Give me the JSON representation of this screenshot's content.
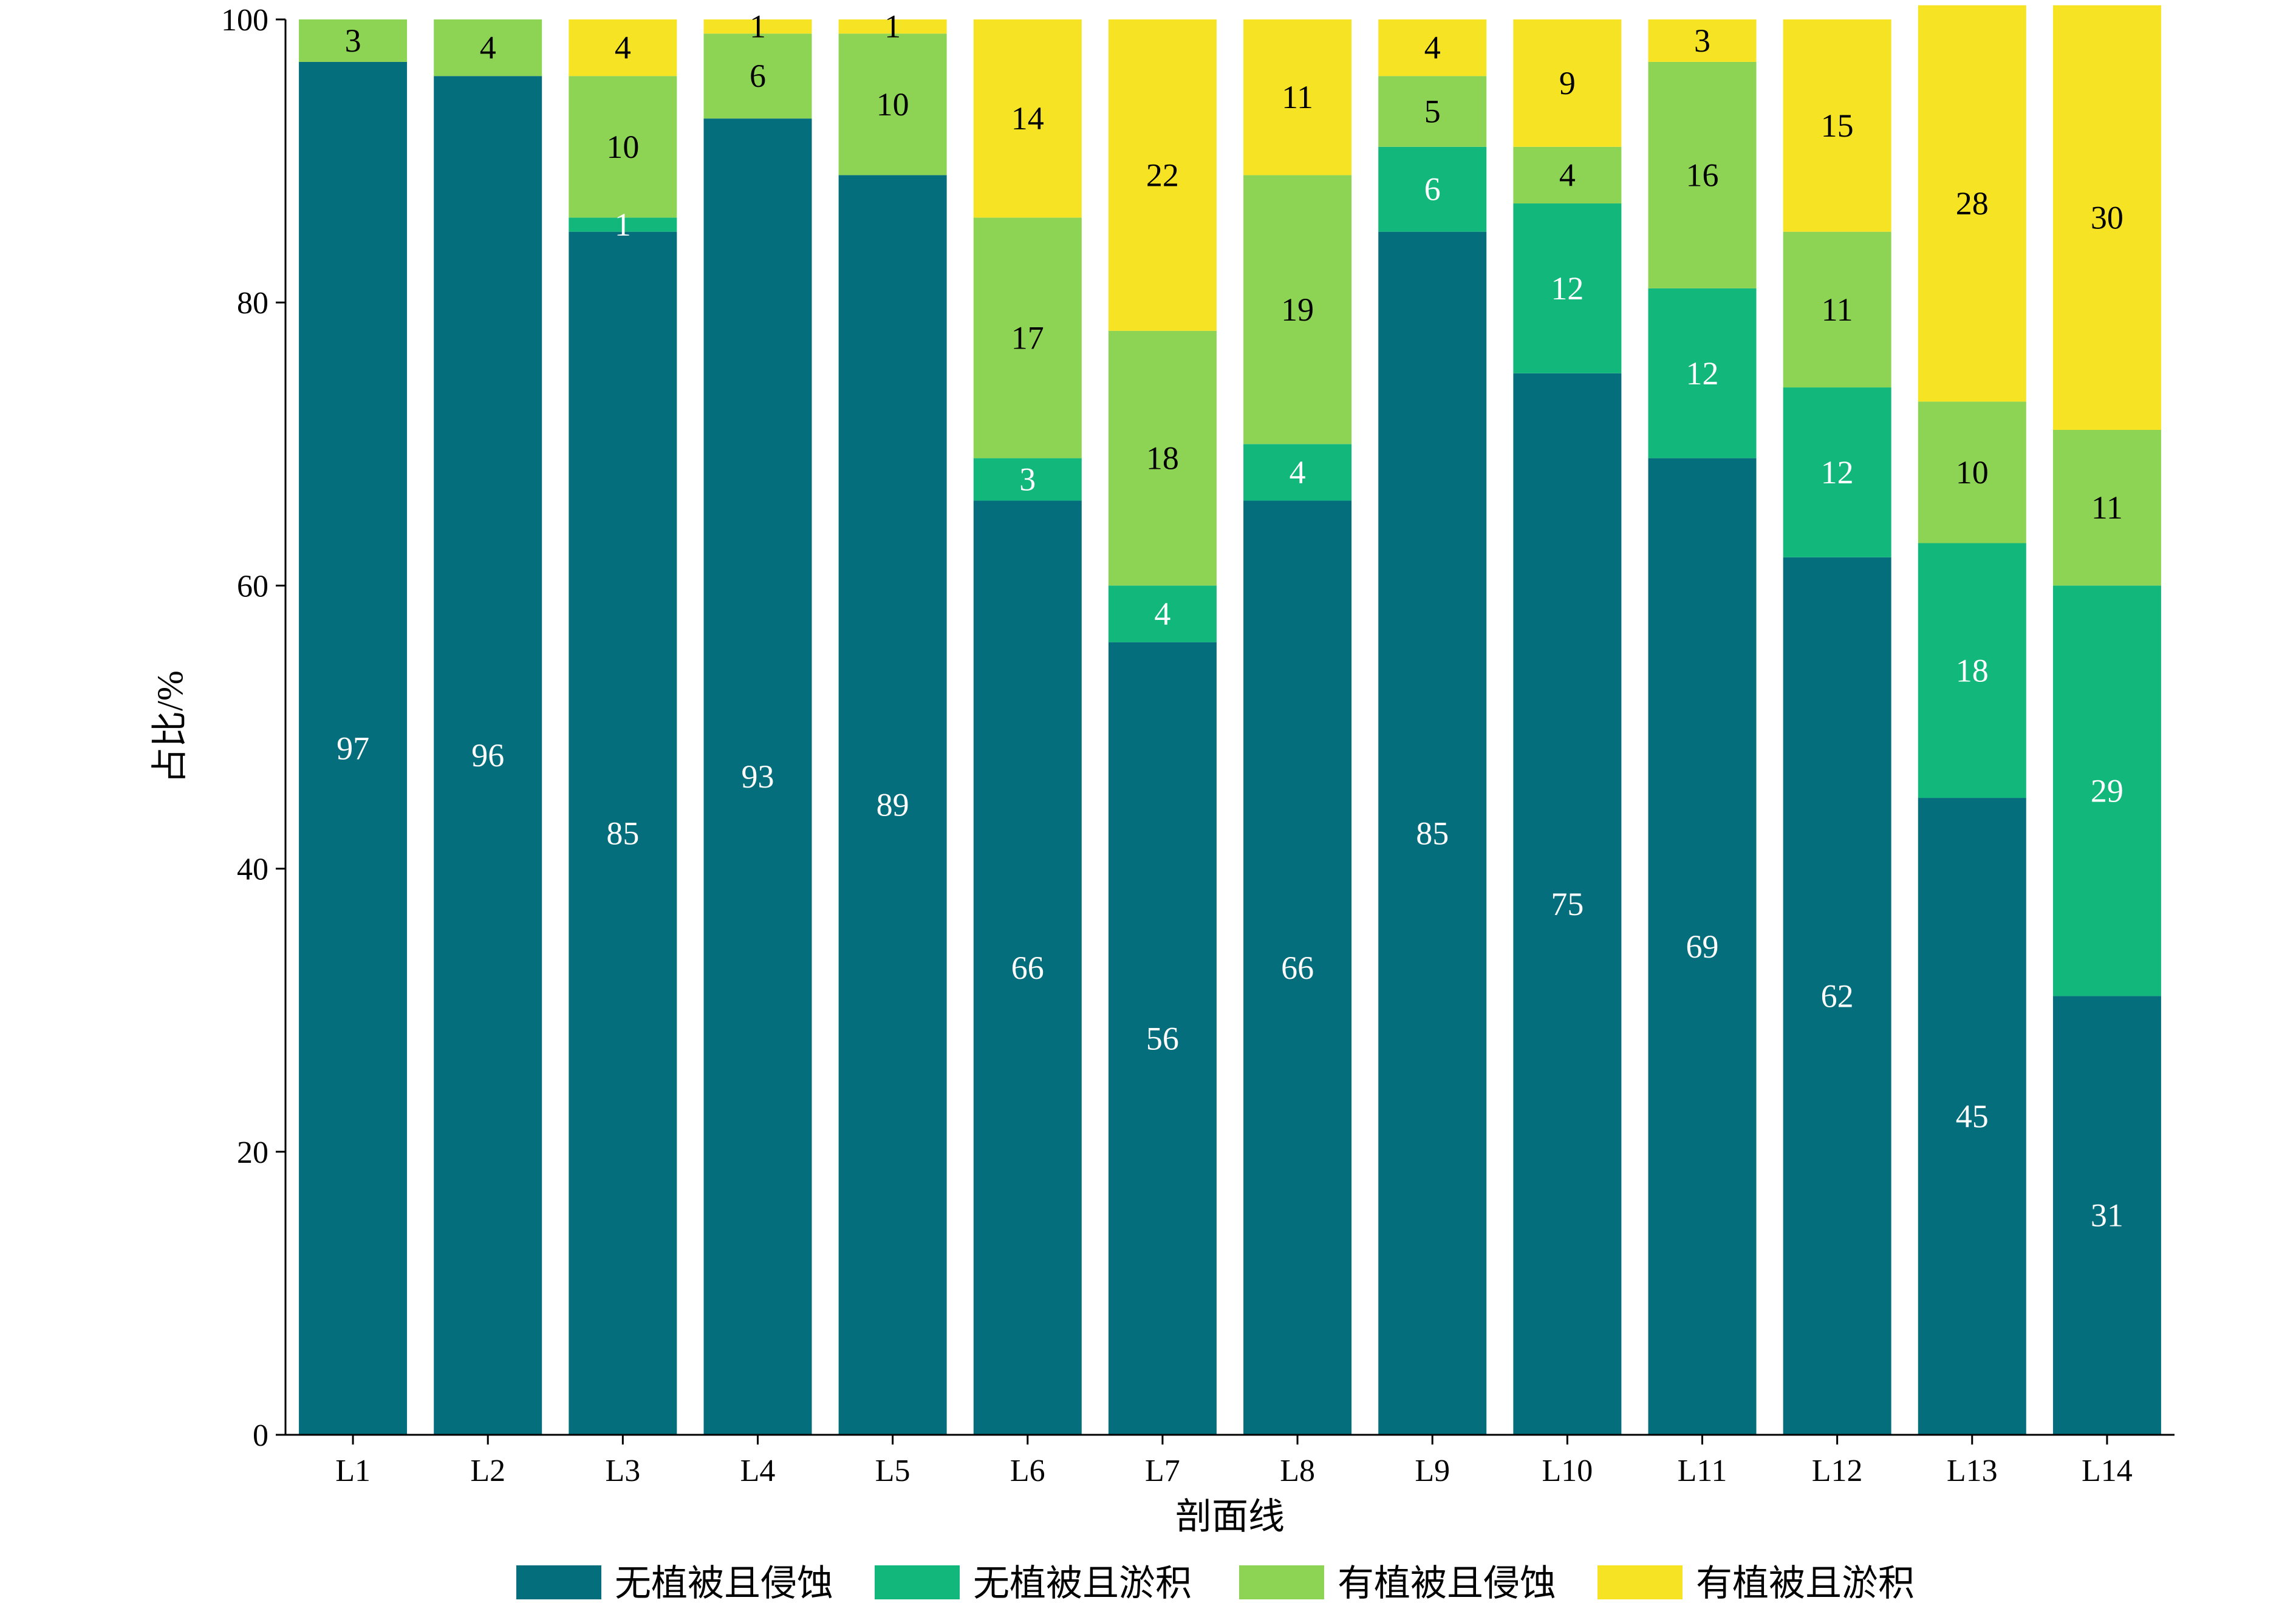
{
  "chart_data": {
    "type": "bar",
    "stacked": true,
    "categories": [
      "L1",
      "L2",
      "L3",
      "L4",
      "L5",
      "L6",
      "L7",
      "L8",
      "L9",
      "L10",
      "L11",
      "L12",
      "L13",
      "L14"
    ],
    "series": [
      {
        "name": "无植被且侵蚀",
        "color": "#046e7c",
        "label_color": "#ffffff",
        "values": [
          97,
          96,
          85,
          93,
          89,
          66,
          56,
          66,
          85,
          75,
          69,
          62,
          45,
          31
        ]
      },
      {
        "name": "无植被且淤积",
        "color": "#12b77b",
        "label_color": "#ffffff",
        "values": [
          0,
          0,
          1,
          0,
          0,
          3,
          4,
          4,
          6,
          12,
          12,
          12,
          18,
          29
        ]
      },
      {
        "name": "有植被且侵蚀",
        "color": "#8dd454",
        "label_color": "#000000",
        "values": [
          3,
          4,
          10,
          6,
          10,
          17,
          18,
          19,
          5,
          4,
          16,
          11,
          10,
          11
        ]
      },
      {
        "name": "有植被且淤积",
        "color": "#f6e424",
        "label_color": "#000000",
        "values": [
          0,
          0,
          4,
          1,
          1,
          14,
          22,
          11,
          4,
          9,
          3,
          15,
          28,
          30
        ]
      }
    ],
    "xlabel": "剖面线",
    "ylabel": "占比/%",
    "ylim": [
      0,
      100
    ],
    "yticks": [
      0,
      20,
      40,
      60,
      80,
      100
    ],
    "grid": false,
    "legend_position": "bottom"
  }
}
